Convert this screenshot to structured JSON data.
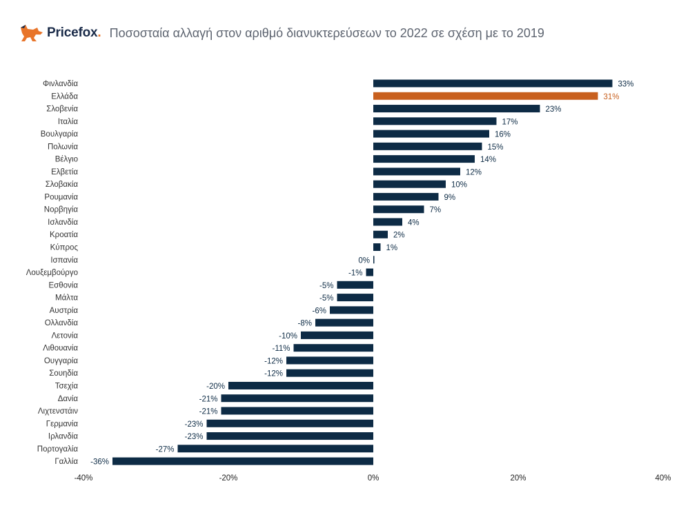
{
  "brand": {
    "name": "Pricefox",
    "dot": ".",
    "colors": {
      "fox": "#e8752a",
      "text": "#1a2b49"
    }
  },
  "colors": {
    "bar": "#0d2b45",
    "highlight": "#c8601e",
    "value_text": "#0d2b45",
    "highlight_text": "#c8601e"
  },
  "chart_data": {
    "type": "bar",
    "orientation": "horizontal",
    "title": "Ποσοσταία αλλαγή στον αριθμό διανυκτερεύσεων το 2022 σε σχέση με το 2019",
    "xlabel": "",
    "ylabel": "",
    "xlim": [
      -40,
      40
    ],
    "xticks": [
      "-40%",
      "-20%",
      "0%",
      "20%",
      "40%"
    ],
    "xtick_values": [
      -40,
      -20,
      0,
      20,
      40
    ],
    "highlight": "Ελλάδα",
    "categories": [
      "Φινλανδία",
      "Ελλάδα",
      "Σλοβενία",
      "Ιταλία",
      "Βουλγαρία",
      "Πολωνία",
      "Βέλγιο",
      "Ελβετία",
      "Σλοβακία",
      "Ρουμανία",
      "Νορβηγία",
      "Ισλανδία",
      "Κροατία",
      "Κύπρος",
      "Ισπανία",
      "Λουξεμβούργο",
      "Εσθονία",
      "Μάλτα",
      "Αυστρία",
      "Ολλανδία",
      "Λετονία",
      "Λιθουανία",
      "Ουγγαρία",
      "Σουηδία",
      "Τσεχία",
      "Δανία",
      "Λιχτενστάιν",
      "Γερμανία",
      "Ιρλανδία",
      "Πορτογαλία",
      "Γαλλία"
    ],
    "values": [
      33,
      31,
      23,
      17,
      16,
      15,
      14,
      12,
      10,
      9,
      7,
      4,
      2,
      1,
      0,
      -1,
      -5,
      -5,
      -6,
      -8,
      -10,
      -11,
      -12,
      -12,
      -20,
      -21,
      -21,
      -23,
      -23,
      -27,
      -36
    ],
    "value_labels": [
      "33%",
      "31%",
      "23%",
      "17%",
      "16%",
      "15%",
      "14%",
      "12%",
      "10%",
      "9%",
      "7%",
      "4%",
      "2%",
      "1%",
      "0%",
      "-1%",
      "-5%",
      "-5%",
      "-6%",
      "-8%",
      "-10%",
      "-11%",
      "-12%",
      "-12%",
      "-20%",
      "-21%",
      "-21%",
      "-23%",
      "-23%",
      "-27%",
      "-36%"
    ]
  }
}
